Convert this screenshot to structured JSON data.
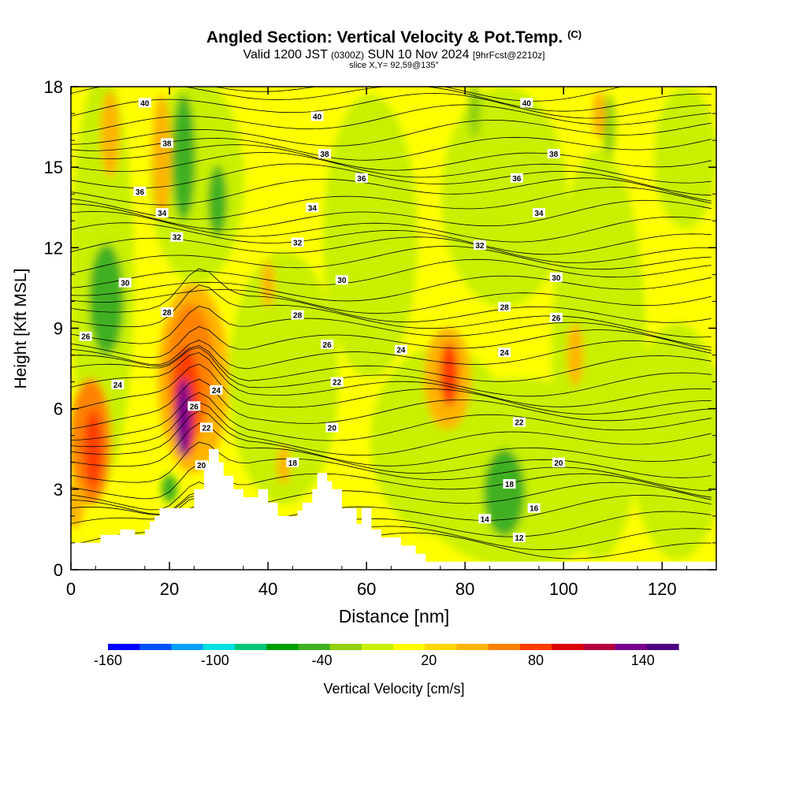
{
  "chart_data": {
    "type": "heatmap",
    "title": {
      "main": "Angled Section: Vertical Velocity & Pot.Temp.",
      "main_units": "(C)",
      "valid_pre": "Valid 1200 JST",
      "valid_utc": "(0300Z)",
      "valid_date": "SUN 10 Nov 2024",
      "forecast": "[9hrFcst@2210z]",
      "slice": "slice X,Y= 92,59@135°"
    },
    "xlabel": "Distance [nm]",
    "ylabel": "Height [Kft MSL]",
    "xlim": [
      0,
      131
    ],
    "ylim": [
      0,
      18
    ],
    "xticks": [
      "0",
      "20",
      "40",
      "60",
      "80",
      "100",
      "120"
    ],
    "yticks": [
      "0",
      "3",
      "6",
      "9",
      "12",
      "15",
      "18"
    ],
    "colorbar": {
      "label": "Vertical Velocity [cm/s]",
      "ticks": [
        "-160",
        "-100",
        "-40",
        "20",
        "80",
        "140"
      ],
      "range": [
        -160,
        160
      ],
      "colors": [
        "#0000ff",
        "#0050ff",
        "#00a0ff",
        "#00e0e0",
        "#00c878",
        "#00a000",
        "#40b020",
        "#90d010",
        "#c8f000",
        "#ffff00",
        "#ffd700",
        "#ffb400",
        "#ff8200",
        "#ff3c00",
        "#dc0000",
        "#b4003c",
        "#78008c",
        "#4b0082"
      ]
    },
    "terrain_profile_kft": [
      [
        0,
        1
      ],
      [
        6,
        1
      ],
      [
        6,
        1.3
      ],
      [
        10,
        1.3
      ],
      [
        10,
        1.5
      ],
      [
        13,
        1.5
      ],
      [
        13,
        1.3
      ],
      [
        15,
        1.3
      ],
      [
        15,
        1.5
      ],
      [
        16,
        1.5
      ],
      [
        16,
        1.8
      ],
      [
        17,
        1.8
      ],
      [
        17,
        2
      ],
      [
        18,
        2
      ],
      [
        18,
        2.3
      ],
      [
        25,
        2.3
      ],
      [
        25,
        3
      ],
      [
        27,
        3
      ],
      [
        27,
        4
      ],
      [
        28,
        4
      ],
      [
        28,
        4.5
      ],
      [
        30,
        4.5
      ],
      [
        30,
        4
      ],
      [
        31,
        4
      ],
      [
        31,
        3.5
      ],
      [
        33,
        3.5
      ],
      [
        33,
        3
      ],
      [
        35,
        3
      ],
      [
        35,
        2.7
      ],
      [
        38,
        2.7
      ],
      [
        38,
        3
      ],
      [
        40,
        3
      ],
      [
        40,
        2.5
      ],
      [
        42,
        2.5
      ],
      [
        42,
        2
      ],
      [
        46,
        2
      ],
      [
        46,
        2.2
      ],
      [
        47,
        2.2
      ],
      [
        47,
        2.5
      ],
      [
        49,
        2.5
      ],
      [
        49,
        3
      ],
      [
        50,
        3
      ],
      [
        50,
        3.6
      ],
      [
        52,
        3.6
      ],
      [
        52,
        3.3
      ],
      [
        53,
        3.3
      ],
      [
        53,
        3
      ],
      [
        55,
        3
      ],
      [
        55,
        2.3
      ],
      [
        58,
        2.3
      ],
      [
        58,
        1.7
      ],
      [
        59,
        1.7
      ],
      [
        59,
        2.3
      ],
      [
        61,
        2.3
      ],
      [
        61,
        1.5
      ],
      [
        63,
        1.5
      ],
      [
        63,
        1.2
      ],
      [
        67,
        1.2
      ],
      [
        67,
        0.9
      ],
      [
        70,
        0.9
      ],
      [
        70,
        0.6
      ],
      [
        72,
        0.6
      ],
      [
        72,
        0.3
      ],
      [
        131,
        0.3
      ]
    ],
    "theta_contour_labels": [
      {
        "t": "40",
        "x": 15,
        "y": 17.4
      },
      {
        "t": "38",
        "x": 19.5,
        "y": 15.9
      },
      {
        "t": "36",
        "x": 14,
        "y": 14.1
      },
      {
        "t": "34",
        "x": 18.5,
        "y": 13.3
      },
      {
        "t": "32",
        "x": 21.5,
        "y": 12.4
      },
      {
        "t": "30",
        "x": 11,
        "y": 10.7
      },
      {
        "t": "28",
        "x": 19.5,
        "y": 9.6
      },
      {
        "t": "26",
        "x": 3,
        "y": 8.7
      },
      {
        "t": "24",
        "x": 9.5,
        "y": 6.9
      },
      {
        "t": "26",
        "x": 25,
        "y": 6.1
      },
      {
        "t": "24",
        "x": 29.5,
        "y": 6.7
      },
      {
        "t": "22",
        "x": 27.5,
        "y": 5.3
      },
      {
        "t": "20",
        "x": 26.5,
        "y": 3.9
      },
      {
        "t": "40",
        "x": 50,
        "y": 16.9
      },
      {
        "t": "38",
        "x": 51.5,
        "y": 15.5
      },
      {
        "t": "36",
        "x": 59,
        "y": 14.6
      },
      {
        "t": "34",
        "x": 49,
        "y": 13.5
      },
      {
        "t": "32",
        "x": 46,
        "y": 12.2
      },
      {
        "t": "30",
        "x": 55,
        "y": 10.8
      },
      {
        "t": "28",
        "x": 46,
        "y": 9.5
      },
      {
        "t": "26",
        "x": 52,
        "y": 8.4
      },
      {
        "t": "24",
        "x": 67,
        "y": 8.2
      },
      {
        "t": "22",
        "x": 54,
        "y": 7.0
      },
      {
        "t": "20",
        "x": 53,
        "y": 5.3
      },
      {
        "t": "18",
        "x": 45,
        "y": 4.0
      },
      {
        "t": "40",
        "x": 92.5,
        "y": 17.4
      },
      {
        "t": "38",
        "x": 98,
        "y": 15.5
      },
      {
        "t": "36",
        "x": 90.5,
        "y": 14.6
      },
      {
        "t": "34",
        "x": 95,
        "y": 13.3
      },
      {
        "t": "32",
        "x": 83,
        "y": 12.1
      },
      {
        "t": "30",
        "x": 98.5,
        "y": 10.9
      },
      {
        "t": "28",
        "x": 88,
        "y": 9.8
      },
      {
        "t": "26",
        "x": 98.5,
        "y": 9.4
      },
      {
        "t": "24",
        "x": 88,
        "y": 8.1
      },
      {
        "t": "22",
        "x": 91,
        "y": 5.5
      },
      {
        "t": "20",
        "x": 99,
        "y": 4.0
      },
      {
        "t": "18",
        "x": 89,
        "y": 3.2
      },
      {
        "t": "16",
        "x": 94,
        "y": 2.3
      },
      {
        "t": "14",
        "x": 84,
        "y": 1.9
      },
      {
        "t": "12",
        "x": 91,
        "y": 1.2
      }
    ],
    "grid": false,
    "legend": "bottom"
  }
}
